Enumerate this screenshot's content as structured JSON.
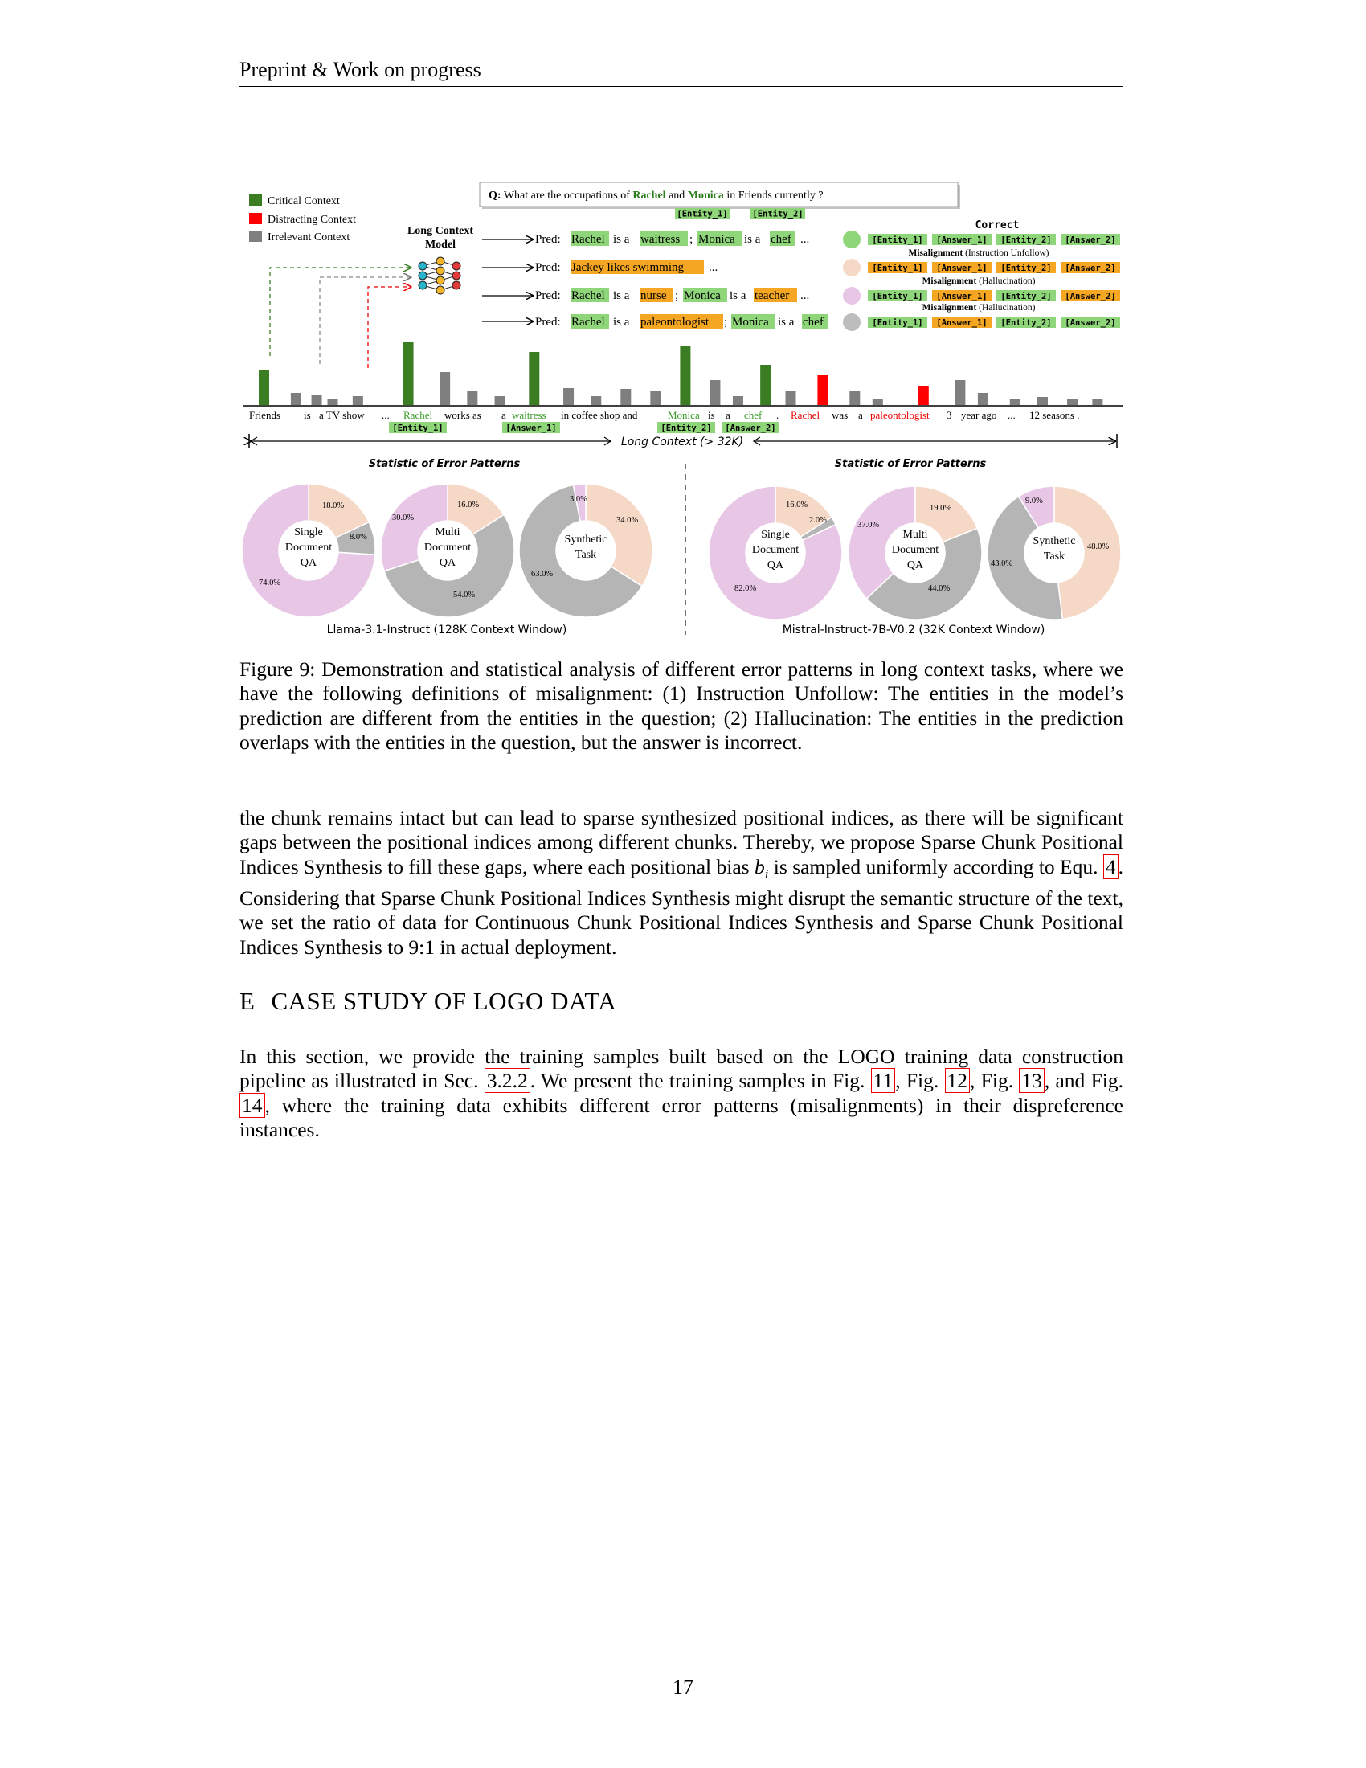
{
  "header": {
    "title": "Preprint & Work on progress"
  },
  "figure": {
    "legend": [
      {
        "label": "Critical Context",
        "color": "#3a7d22"
      },
      {
        "label": "Distracting Context",
        "color": "#ff0000"
      },
      {
        "label": "Irrelevant Context",
        "color": "#7f7f7f"
      }
    ],
    "model_label_1": "Long Context",
    "model_label_2": "Model",
    "question": {
      "q": "Q:",
      "pre": "What are the occupations of",
      "e1": "Rachel",
      "mid": "and",
      "e2": "Monica",
      "post": "in Friends currently ?",
      "tag1": "[Entity_1]",
      "tag2": "[Entity_2]"
    },
    "preds": [
      {
        "label": "Pred:",
        "parts": [
          "Rachel",
          "is a",
          "waitress",
          ";",
          "Monica",
          "is a",
          "chef",
          "..."
        ]
      },
      {
        "label": "Pred:",
        "parts": [
          "Jackey likes swimming",
          "..."
        ]
      },
      {
        "label": "Pred:",
        "parts": [
          "Rachel",
          "is a",
          "nurse",
          ";",
          "Monica",
          "is a",
          "teacher",
          "..."
        ]
      },
      {
        "label": "Pred:",
        "parts": [
          "Rachel",
          "is a",
          "paleontologist",
          ";",
          "Monica",
          "is a",
          "chef"
        ]
      }
    ],
    "outcomes": [
      {
        "title": "Correct",
        "subtitle": "",
        "tags": [
          "[Entity_1]",
          "[Answer_1]",
          "[Entity_2]",
          "[Answer_2]"
        ],
        "color": "#8fd67a"
      },
      {
        "title": "Misalignment",
        "subtitle": "(Instruction Unfollow)",
        "tags": [
          "[Entity_1]",
          "[Answer_1]",
          "[Entity_2]",
          "[Answer_2]"
        ],
        "color": "#f6d8c6"
      },
      {
        "title": "Misalignment",
        "subtitle": "(Hallucination)",
        "tags": [
          "[Entity_1]",
          "[Answer_1]",
          "[Entity_2]",
          "[Answer_2]"
        ],
        "color": "#e8c6e6"
      },
      {
        "title": "Misalignment",
        "subtitle": "(Hallucination)",
        "tags": [
          "[Entity_1]",
          "[Answer_1]",
          "[Entity_2]",
          "[Answer_2]"
        ],
        "color": "#bdbdbd"
      }
    ],
    "tokens": {
      "t1": "Friends",
      "t2": "is",
      "t3": "a TV show",
      "t4": "...",
      "t5": "Rachel",
      "t6": "works as",
      "t7": "a",
      "t8": "waitress",
      "t9": "in coffee shop and",
      "t10": "Monica",
      "t11": "is",
      "t12": "a",
      "t13": "chef",
      "t14": ".",
      "t15": "Rachel",
      "t16": "was",
      "t17": "a",
      "t18": "paleontologist",
      "t19": "3",
      "t20": "year ago",
      "t21": "...",
      "t22": "12 seasons ."
    },
    "token_tags": {
      "e1": "[Entity_1]",
      "a1": "[Answer_1]",
      "e2": "[Entity_2]",
      "a2": "[Answer_2]"
    },
    "context_label": "Long Context (> 32K)",
    "bars": [
      {
        "type": "critical",
        "h": 0.44
      },
      {
        "type": "irrelevant",
        "h": 0.15
      },
      {
        "type": "irrelevant",
        "h": 0.12
      },
      {
        "type": "irrelevant",
        "h": 0.08
      },
      {
        "type": "irrelevant",
        "h": 0.11
      },
      {
        "type": "critical",
        "h": 0.79
      },
      {
        "type": "irrelevant",
        "h": 0.41
      },
      {
        "type": "irrelevant",
        "h": 0.18
      },
      {
        "type": "irrelevant",
        "h": 0.11
      },
      {
        "type": "critical",
        "h": 0.66
      },
      {
        "type": "irrelevant",
        "h": 0.21
      },
      {
        "type": "irrelevant",
        "h": 0.11
      },
      {
        "type": "irrelevant",
        "h": 0.2
      },
      {
        "type": "irrelevant",
        "h": 0.17
      },
      {
        "type": "critical",
        "h": 0.73
      },
      {
        "type": "irrelevant",
        "h": 0.31
      },
      {
        "type": "irrelevant",
        "h": 0.11
      },
      {
        "type": "critical",
        "h": 0.5
      },
      {
        "type": "irrelevant",
        "h": 0.17
      },
      {
        "type": "distracting",
        "h": 0.37
      },
      {
        "type": "irrelevant",
        "h": 0.17
      },
      {
        "type": "irrelevant",
        "h": 0.08
      },
      {
        "type": "distracting",
        "h": 0.24
      },
      {
        "type": "irrelevant",
        "h": 0.31
      },
      {
        "type": "irrelevant",
        "h": 0.15
      },
      {
        "type": "irrelevant",
        "h": 0.08
      },
      {
        "type": "irrelevant",
        "h": 0.1
      },
      {
        "type": "irrelevant",
        "h": 0.08
      },
      {
        "type": "irrelevant",
        "h": 0.08
      }
    ],
    "stat_title_left": "Statistic of Error Patterns",
    "stat_title_right": "Statistic of Error Patterns",
    "model_left": "Llama-3.1-Instruct (128K Context Window)",
    "model_right": "Mistral-Instruct-7B-V0.2 (32K Context Window)",
    "pie_colors": {
      "hallucination": "#e8c6e6",
      "unfollow": "#f6d8c6",
      "other": "#b5b5b5"
    }
  },
  "chart_data": [
    {
      "type": "pie",
      "title": "Single Document QA",
      "group": "Llama-3.1-Instruct (128K Context Window)",
      "labels": [
        "Hallucination",
        "Instruction Unfollow",
        "Hallucination (other)"
      ],
      "values": [
        74.0,
        18.0,
        8.0
      ]
    },
    {
      "type": "pie",
      "title": "Multi Document QA",
      "group": "Llama-3.1-Instruct (128K Context Window)",
      "labels": [
        "Hallucination",
        "Instruction Unfollow",
        "Hallucination (other)"
      ],
      "values": [
        30.0,
        16.0,
        54.0
      ]
    },
    {
      "type": "pie",
      "title": "Synthetic Task",
      "group": "Llama-3.1-Instruct (128K Context Window)",
      "labels": [
        "Hallucination",
        "Instruction Unfollow",
        "Hallucination (other)"
      ],
      "values": [
        3.0,
        34.0,
        63.0
      ]
    },
    {
      "type": "pie",
      "title": "Single Document QA",
      "group": "Mistral-Instruct-7B-V0.2 (32K Context Window)",
      "labels": [
        "Hallucination",
        "Instruction Unfollow",
        "Hallucination (other)"
      ],
      "values": [
        82.0,
        16.0,
        2.0
      ]
    },
    {
      "type": "pie",
      "title": "Multi Document QA",
      "group": "Mistral-Instruct-7B-V0.2 (32K Context Window)",
      "labels": [
        "Hallucination",
        "Instruction Unfollow",
        "Hallucination (other)"
      ],
      "values": [
        37.0,
        19.0,
        44.0
      ]
    },
    {
      "type": "pie",
      "title": "Synthetic Task",
      "group": "Mistral-Instruct-7B-V0.2 (32K Context Window)",
      "labels": [
        "Hallucination",
        "Instruction Unfollow",
        "Hallucination (other)"
      ],
      "values": [
        9.0,
        48.0,
        43.0
      ]
    }
  ],
  "caption": "Figure 9: Demonstration and statistical analysis of different error patterns in long context tasks, where we have the following definitions of misalignment: (1) Instruction Unfollow: The entities in the model’s prediction are different from the entities in the question; (2) Hallucination: The entities in the prediction overlaps with the entities in the question, but the answer is incorrect.",
  "body1": {
    "before": "the chunk remains intact but can lead to sparse synthesized positional indices, as there will be significant gaps between the positional indices among different chunks. Thereby, we propose Sparse Chunk Positional Indices Synthesis to fill these gaps, where each positional bias ",
    "var": "b",
    "sub": "i",
    "mid": " is sampled uniformly according to Equ. ",
    "ref": "4",
    "after": ". Considering that Sparse Chunk Positional Indices Synthesis might disrupt the semantic structure of the text, we set the ratio of data for Continuous Chunk Positional Indices Synthesis and Sparse Chunk Positional Indices Synthesis to 9:1 in actual deployment."
  },
  "section": {
    "num": "E",
    "title": "CASE STUDY OF LOGO DATA"
  },
  "body2": {
    "p1": "In this section, we provide the training samples built based on the LOGO training data construction pipeline as illustrated in Sec. ",
    "r1": "3.2.2",
    "p2": ". We present the training samples in Fig. ",
    "r2": "11",
    "p3": ", Fig. ",
    "r3": "12",
    "p4": ", Fig. ",
    "r4": "13",
    "p5": ", and Fig. ",
    "r5": "14",
    "p6": ", where the training data exhibits different error patterns (misalignments) in their dispreference instances."
  },
  "page_number": "17"
}
